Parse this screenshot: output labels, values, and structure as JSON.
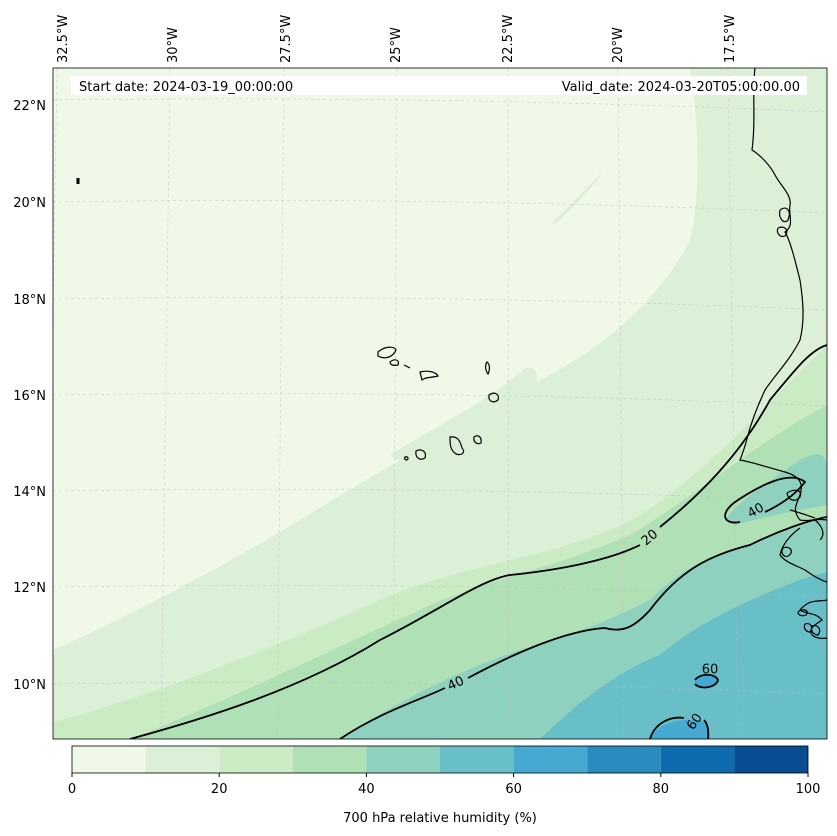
{
  "map": {
    "start_label": "Start date: 2024-03-19_00:00:00",
    "valid_label": "Valid_date: 2024-03-20T05:00:00.00",
    "lon_ticks": [
      "32.5°W",
      "30°W",
      "27.5°W",
      "25°W",
      "22.5°W",
      "20°W",
      "17.5°W"
    ],
    "lat_ticks": [
      "22°N",
      "20°N",
      "18°N",
      "16°N",
      "14°N",
      "12°N",
      "10°N"
    ],
    "contour_labels": [
      "20",
      "40",
      "40",
      "60",
      "60"
    ],
    "gridlines": true
  },
  "colorbar": {
    "label": "700 hPa relative humidity (%)",
    "ticks": [
      "0",
      "20",
      "40",
      "60",
      "80",
      "100"
    ],
    "range": [
      0,
      100
    ],
    "levels": [
      0,
      10,
      20,
      30,
      40,
      50,
      60,
      70,
      80,
      90,
      100
    ],
    "colors": [
      "#f0f9e8",
      "#dcf0d8",
      "#cbebc5",
      "#b0e0b6",
      "#8ed1bf",
      "#69bfc8",
      "#46a9d2",
      "#2a8bc0",
      "#0e6bad",
      "#084c92"
    ]
  }
}
